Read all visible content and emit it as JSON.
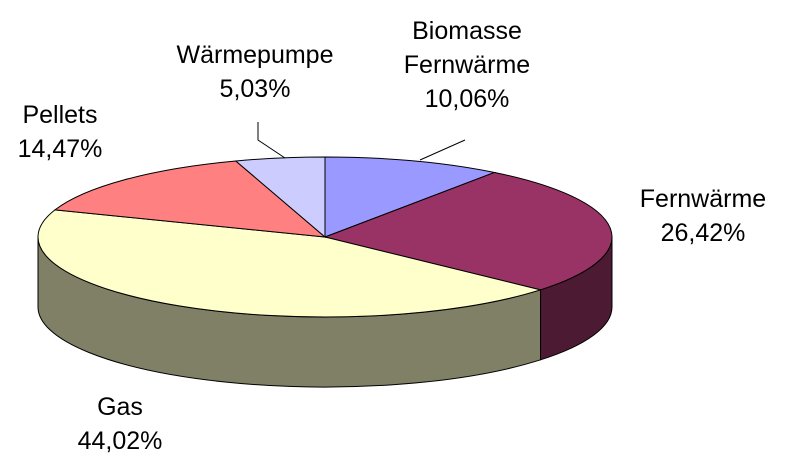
{
  "chart_data": {
    "type": "pie",
    "categories": [
      "Biomasse Fernwärme",
      "Fernwärme",
      "Gas",
      "Pellets",
      "Wärmepumpe"
    ],
    "values": [
      10.06,
      26.42,
      44.02,
      14.47,
      5.03
    ],
    "value_labels": [
      "10,06%",
      "26,42%",
      "44,02%",
      "14,47%",
      "5,03%"
    ],
    "colors": [
      "#9999ff",
      "#993366",
      "#ffffcc",
      "#ff8080",
      "#ccccff"
    ]
  }
}
